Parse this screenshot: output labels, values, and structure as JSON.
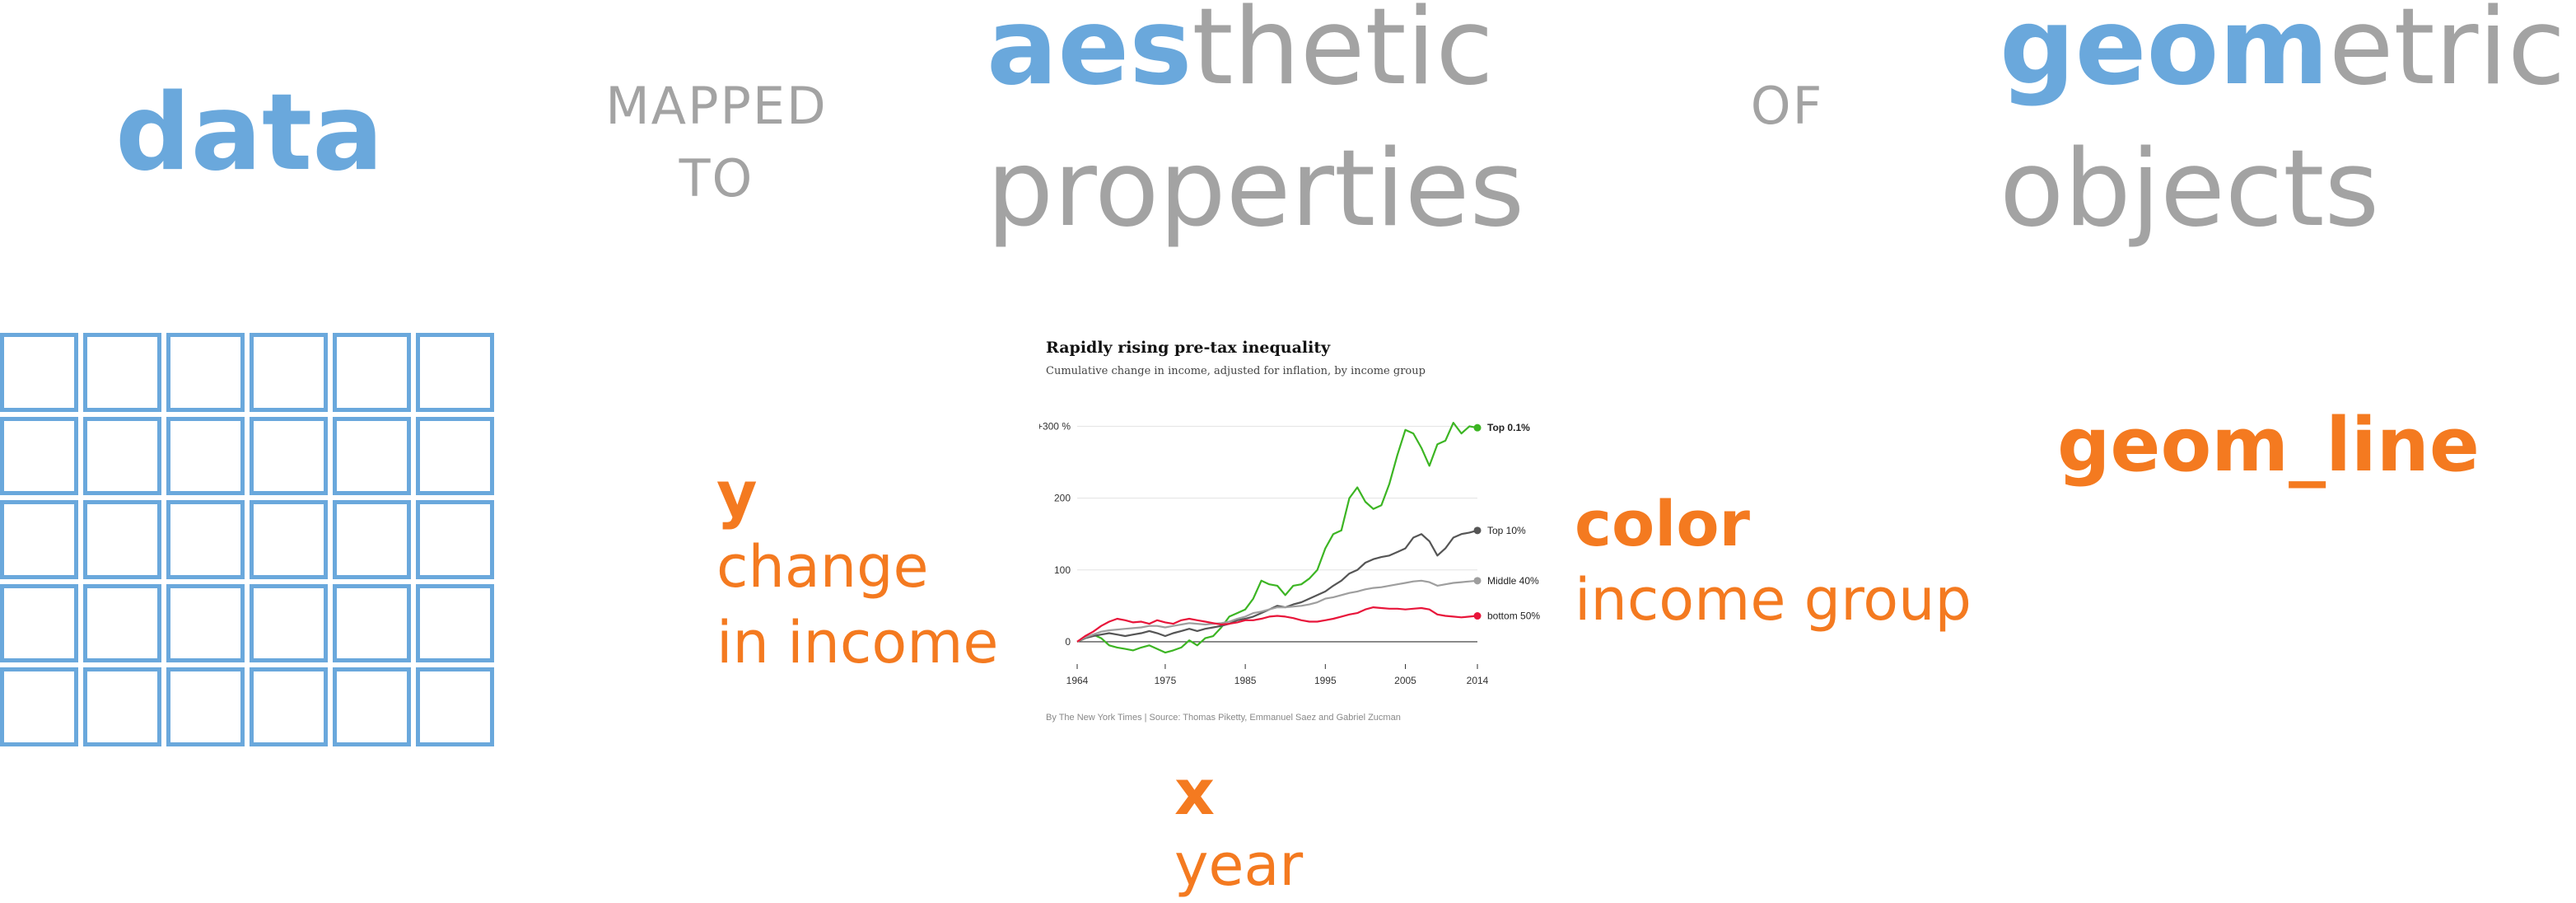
{
  "header": {
    "data": "data",
    "mapped_line1": "MAPPED",
    "mapped_line2": "TO",
    "aes_highlight": "aes",
    "aes_rest": "thetic",
    "properties": "properties",
    "of": "OF",
    "geo_highlight": "geom",
    "geo_rest": "etric",
    "objects": "objects"
  },
  "labels": {
    "y_axis": "y",
    "y_meaning_1": "change",
    "y_meaning_2": "in income",
    "x_axis": "x",
    "x_meaning": "year",
    "color": "color",
    "color_meaning": "income group",
    "geom": "geom_line"
  },
  "colors": {
    "blue": "#6aa8dc",
    "gray": "#a3a3a3",
    "orange": "#f47a20"
  },
  "chart_data": {
    "type": "line",
    "title": "Rapidly rising pre-tax inequality",
    "subtitle": "Cumulative change in income, adjusted for inflation, by income group",
    "source": "By The New York Times | Source: Thomas Piketty, Emmanuel Saez and Gabriel Zucman",
    "x_ticks": [
      "1964",
      "1975",
      "1985",
      "1995",
      "2005",
      "2014"
    ],
    "x_tick_values": [
      1964,
      1975,
      1985,
      1995,
      2005,
      2014
    ],
    "y_ticks": [
      "+300 %",
      "200",
      "100",
      "0"
    ],
    "y_tick_values": [
      300,
      200,
      100,
      0
    ],
    "xlim": [
      1964,
      2014
    ],
    "ylim": [
      -15,
      320
    ],
    "grid": true,
    "x": [
      1964,
      1965,
      1966,
      1967,
      1968,
      1969,
      1970,
      1971,
      1972,
      1973,
      1974,
      1975,
      1976,
      1977,
      1978,
      1979,
      1980,
      1981,
      1982,
      1983,
      1984,
      1985,
      1986,
      1987,
      1988,
      1989,
      1990,
      1991,
      1992,
      1993,
      1994,
      1995,
      1996,
      1997,
      1998,
      1999,
      2000,
      2001,
      2002,
      2003,
      2004,
      2005,
      2006,
      2007,
      2008,
      2009,
      2010,
      2011,
      2012,
      2013,
      2014
    ],
    "series": [
      {
        "name": "Top 0.1%",
        "color": "#3cb523",
        "values": [
          0,
          5,
          10,
          5,
          -5,
          -8,
          -10,
          -12,
          -8,
          -5,
          -10,
          -15,
          -12,
          -8,
          2,
          -5,
          5,
          8,
          20,
          35,
          40,
          45,
          60,
          85,
          80,
          78,
          65,
          78,
          80,
          88,
          100,
          130,
          150,
          155,
          200,
          215,
          195,
          185,
          190,
          220,
          260,
          295,
          290,
          270,
          245,
          275,
          280,
          305,
          290,
          300,
          298
        ]
      },
      {
        "name": "Top 10%",
        "color": "#555555",
        "values": [
          0,
          5,
          8,
          10,
          12,
          10,
          8,
          10,
          12,
          15,
          12,
          8,
          12,
          15,
          18,
          15,
          18,
          20,
          22,
          25,
          30,
          32,
          35,
          40,
          45,
          50,
          48,
          52,
          55,
          60,
          65,
          70,
          78,
          85,
          95,
          100,
          110,
          115,
          118,
          120,
          125,
          130,
          145,
          150,
          140,
          120,
          130,
          145,
          150,
          152,
          155
        ]
      },
      {
        "name": "Middle 40%",
        "color": "#9e9e9e",
        "values": [
          0,
          6,
          10,
          14,
          16,
          17,
          18,
          19,
          20,
          22,
          22,
          20,
          22,
          24,
          26,
          25,
          24,
          25,
          26,
          28,
          32,
          35,
          40,
          42,
          45,
          48,
          48,
          49,
          50,
          52,
          55,
          60,
          62,
          65,
          68,
          70,
          73,
          75,
          76,
          78,
          80,
          82,
          84,
          85,
          83,
          78,
          80,
          82,
          83,
          84,
          85
        ]
      },
      {
        "name": "bottom 50%",
        "color": "#e8153a",
        "values": [
          0,
          8,
          14,
          22,
          28,
          32,
          30,
          27,
          28,
          25,
          30,
          27,
          25,
          30,
          32,
          30,
          28,
          26,
          24,
          25,
          27,
          30,
          30,
          32,
          35,
          36,
          35,
          33,
          30,
          28,
          28,
          30,
          32,
          35,
          38,
          40,
          45,
          48,
          47,
          46,
          46,
          45,
          46,
          47,
          45,
          38,
          36,
          35,
          34,
          35,
          36
        ]
      }
    ]
  }
}
